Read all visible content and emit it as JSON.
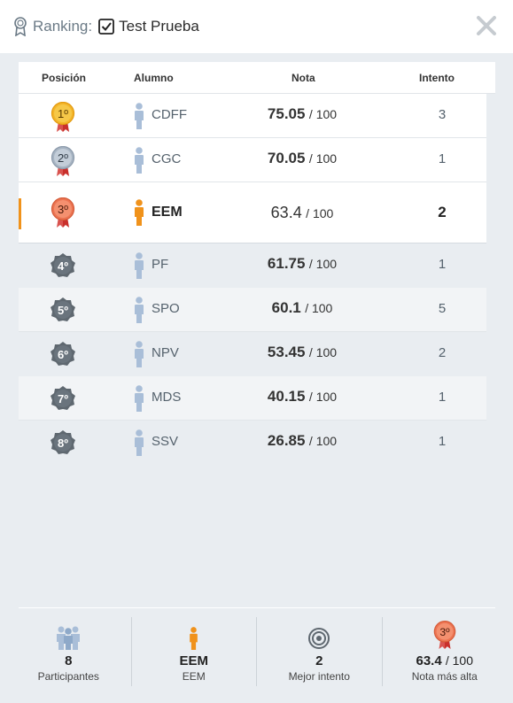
{
  "header": {
    "ranking_label": "Ranking:",
    "quiz_title": "Test Prueba"
  },
  "columns": {
    "position": "Posición",
    "student": "Alumno",
    "grade": "Nota",
    "attempt": "Intento"
  },
  "rows": [
    {
      "position": "1º",
      "medal": "gold",
      "student": "CDFF",
      "score": "75.05",
      "out_of": "/ 100",
      "attempt": "3"
    },
    {
      "position": "2º",
      "medal": "silver",
      "student": "CGC",
      "score": "70.05",
      "out_of": "/ 100",
      "attempt": "1"
    },
    {
      "position": "3º",
      "medal": "bronze",
      "student": "EEM",
      "score": "63.4",
      "out_of": "/ 100",
      "attempt": "2",
      "current": true
    },
    {
      "position": "4º",
      "medal": "gear",
      "student": "PF",
      "score": "61.75",
      "out_of": "/ 100",
      "attempt": "1"
    },
    {
      "position": "5º",
      "medal": "gear",
      "student": "SPO",
      "score": "60.1",
      "out_of": "/ 100",
      "attempt": "5"
    },
    {
      "position": "6º",
      "medal": "gear",
      "student": "NPV",
      "score": "53.45",
      "out_of": "/ 100",
      "attempt": "2"
    },
    {
      "position": "7º",
      "medal": "gear",
      "student": "MDS",
      "score": "40.15",
      "out_of": "/ 100",
      "attempt": "1"
    },
    {
      "position": "8º",
      "medal": "gear",
      "student": "SSV",
      "score": "26.85",
      "out_of": "/ 100",
      "attempt": "1"
    }
  ],
  "stats": {
    "participants": {
      "value": "8",
      "label": "Participantes",
      "icon": "group-icon"
    },
    "student": {
      "value": "EEM",
      "label": "EEM",
      "icon": "person-orange-icon"
    },
    "best_attempt": {
      "value": "2",
      "label": "Mejor intento",
      "icon": "target-icon"
    },
    "highest": {
      "value": "63.4",
      "out_of": "/ 100",
      "label": "Nota más alta",
      "medal": "3º",
      "icon": "bronze-medal-icon"
    }
  },
  "colors": {
    "accent": "#f0921b",
    "gold": "#f3b52a",
    "silver": "#b3c0ce",
    "bronze": "#ee7d5a",
    "gear": "#5f6870",
    "person_blue": "#a9bed8"
  }
}
